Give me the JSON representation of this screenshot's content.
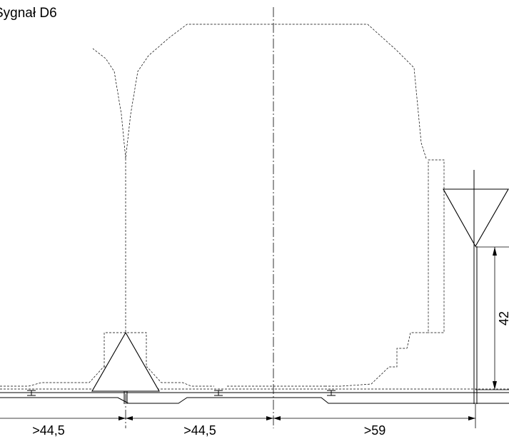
{
  "title": "Sygnał D6",
  "dimensions": {
    "spacing_left": ">44,5",
    "spacing_middle": ">44,5",
    "spacing_right": ">59",
    "height": "42"
  }
}
